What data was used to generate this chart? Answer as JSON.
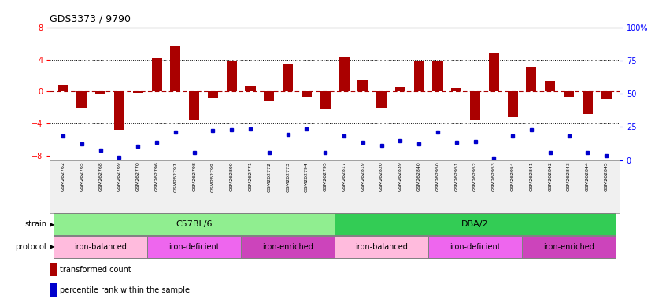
{
  "title": "GDS3373 / 9790",
  "samples": [
    "GSM262762",
    "GSM262765",
    "GSM262768",
    "GSM262769",
    "GSM262770",
    "GSM262796",
    "GSM262797",
    "GSM262798",
    "GSM262799",
    "GSM262800",
    "GSM262771",
    "GSM262772",
    "GSM262773",
    "GSM262794",
    "GSM262795",
    "GSM262817",
    "GSM262819",
    "GSM262820",
    "GSM262839",
    "GSM262840",
    "GSM262950",
    "GSM262951",
    "GSM262952",
    "GSM262953",
    "GSM262954",
    "GSM262841",
    "GSM262842",
    "GSM262843",
    "GSM262844",
    "GSM262845"
  ],
  "bar_values": [
    0.8,
    -2.0,
    -0.3,
    -4.7,
    -0.1,
    4.1,
    5.6,
    -3.5,
    -0.7,
    3.8,
    0.7,
    -1.2,
    3.5,
    -0.6,
    -2.2,
    4.2,
    1.4,
    -2.0,
    0.5,
    3.9,
    3.9,
    0.4,
    -3.5,
    4.8,
    -3.2,
    3.1,
    1.3,
    -0.6,
    -2.8,
    -0.9
  ],
  "dot_values": [
    -5.5,
    -6.5,
    -7.3,
    -8.2,
    -6.8,
    -6.3,
    -5.0,
    -7.6,
    -4.8,
    -4.7,
    -4.6,
    -7.6,
    -5.3,
    -4.6,
    -7.6,
    -5.5,
    -6.3,
    -6.7,
    -6.1,
    -6.5,
    -5.0,
    -6.3,
    -6.2,
    -8.3,
    -5.5,
    -4.7,
    -7.6,
    -5.5,
    -7.6,
    -8.0
  ],
  "strain_groups": [
    {
      "label": "C57BL/6",
      "start": 0,
      "end": 15,
      "color": "#90EE90"
    },
    {
      "label": "DBA/2",
      "start": 15,
      "end": 30,
      "color": "#33CC55"
    }
  ],
  "protocol_groups": [
    {
      "label": "iron-balanced",
      "start": 0,
      "end": 5,
      "color": "#FFBBDD"
    },
    {
      "label": "iron-deficient",
      "start": 5,
      "end": 10,
      "color": "#EE66EE"
    },
    {
      "label": "iron-enriched",
      "start": 10,
      "end": 15,
      "color": "#CC44BB"
    },
    {
      "label": "iron-balanced",
      "start": 15,
      "end": 20,
      "color": "#FFBBDD"
    },
    {
      "label": "iron-deficient",
      "start": 20,
      "end": 25,
      "color": "#EE66EE"
    },
    {
      "label": "iron-enriched",
      "start": 25,
      "end": 30,
      "color": "#CC44BB"
    }
  ],
  "bar_color": "#AA0000",
  "dot_color": "#0000CC",
  "ylim": [
    -8.5,
    8.0
  ],
  "yticks_left": [
    -8,
    -4,
    0,
    4,
    8
  ],
  "ylim_right": [
    0,
    100
  ],
  "yticks_right": [
    0,
    25,
    50,
    75,
    100
  ],
  "ytick_labels_right": [
    "0",
    "25",
    "50",
    "75",
    "100%"
  ],
  "bg_color": "#F0F0F0"
}
